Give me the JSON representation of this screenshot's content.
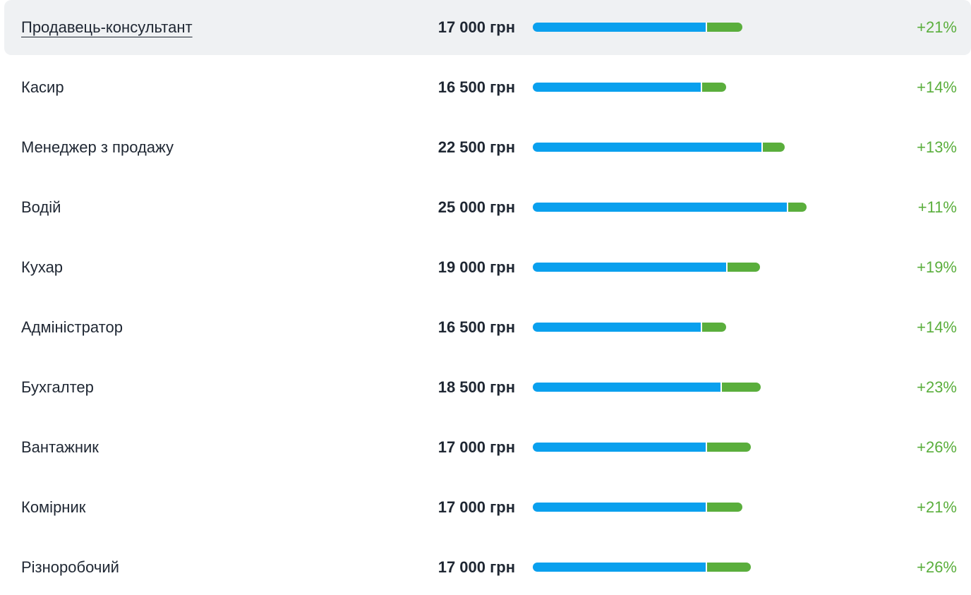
{
  "colors": {
    "base_bar": "#0aa0ee",
    "growth_bar": "#5aae3c",
    "growth_text": "#5aae3c",
    "hover_bg": "#eff1f3"
  },
  "scale": {
    "max_salary": 25000
  },
  "rows": [
    {
      "title": "Продавець-консультант",
      "salary": "17 000 грн",
      "salary_value": 17000,
      "growth": "+21%",
      "growth_value": 21,
      "hovered": true
    },
    {
      "title": "Касир",
      "salary": "16 500 грн",
      "salary_value": 16500,
      "growth": "+14%",
      "growth_value": 14
    },
    {
      "title": "Менеджер з продажу",
      "salary": "22 500 грн",
      "salary_value": 22500,
      "growth": "+13%",
      "growth_value": 13
    },
    {
      "title": "Водій",
      "salary": "25 000 грн",
      "salary_value": 25000,
      "growth": "+11%",
      "growth_value": 11
    },
    {
      "title": "Кухар",
      "salary": "19 000 грн",
      "salary_value": 19000,
      "growth": "+19%",
      "growth_value": 19
    },
    {
      "title": "Адміністратор",
      "salary": "16 500 грн",
      "salary_value": 16500,
      "growth": "+14%",
      "growth_value": 14
    },
    {
      "title": "Бухгалтер",
      "salary": "18 500 грн",
      "salary_value": 18500,
      "growth": "+23%",
      "growth_value": 23
    },
    {
      "title": "Вантажник",
      "salary": "17 000 грн",
      "salary_value": 17000,
      "growth": "+26%",
      "growth_value": 26
    },
    {
      "title": "Комірник",
      "salary": "17 000 грн",
      "salary_value": 17000,
      "growth": "+21%",
      "growth_value": 21
    },
    {
      "title": "Різноробочий",
      "salary": "17 000 грн",
      "salary_value": 17000,
      "growth": "+26%",
      "growth_value": 26
    }
  ]
}
